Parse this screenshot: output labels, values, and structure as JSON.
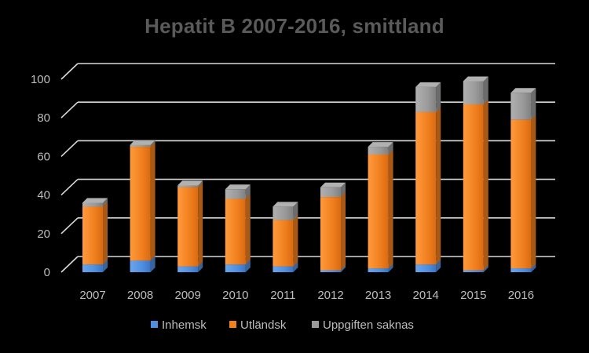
{
  "chart_data": {
    "type": "bar",
    "stacked": true,
    "title": "Hepatit B 2007-2016, smittland",
    "xlabel": "",
    "ylabel": "",
    "categories": [
      "2007",
      "2008",
      "2009",
      "2010",
      "2011",
      "2012",
      "2013",
      "2014",
      "2015",
      "2016"
    ],
    "ylim": [
      0,
      100
    ],
    "yticks": [
      0,
      20,
      40,
      60,
      80,
      100
    ],
    "grid": true,
    "legend": "bottom",
    "series": [
      {
        "name": "Inhemsk",
        "color": "#4f8fe0",
        "values": [
          4,
          6,
          3,
          4,
          3,
          1,
          2,
          4,
          1,
          2
        ]
      },
      {
        "name": "Utländsk",
        "color": "#f07f1e",
        "values": [
          30,
          59,
          41,
          34,
          24,
          38,
          59,
          79,
          86,
          77
        ]
      },
      {
        "name": "Uppgiften saknas",
        "color": "#9a9a9a",
        "values": [
          2,
          1,
          1,
          5,
          7,
          5,
          4,
          13,
          12,
          14
        ]
      }
    ]
  }
}
